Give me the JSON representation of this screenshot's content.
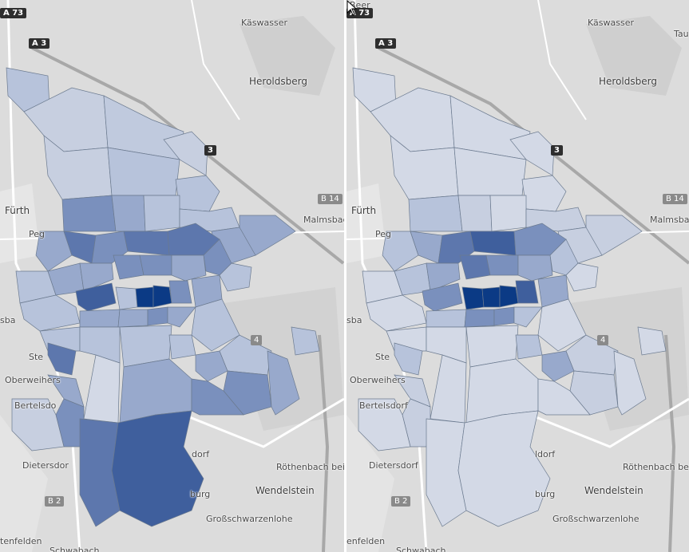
{
  "colors": {
    "base_map": "#dcdcdc",
    "choropleth_scale": [
      "#d3d9e6",
      "#b7c3db",
      "#98a9cc",
      "#7a90bd",
      "#5d77ad",
      "#3f5f9d",
      "#0b3a85"
    ]
  },
  "panels": [
    {
      "id": "left",
      "labels": {
        "kaeswasser": "Käswasser",
        "heroldsberg": "Heroldsberg",
        "fuerth": "Fürth",
        "peg": "Peg",
        "malmsbach": "Malmsbach",
        "sba": "sba",
        "ste": "Ste",
        "oberweihers": "Oberweihers",
        "bertelsdorf": "Bertelsdo",
        "dietersdorf": "Dietersdor",
        "schwabach": "Schwabach",
        "enfelden": "tenfelden",
        "rothenbach": "Röthenbach bei S",
        "wendelstein": "Wendelstein",
        "grossschwarzenlohe": "Großschwarzenlohe",
        "dorf": "dorf",
        "burg": "burg"
      },
      "road_shields": {
        "a73": "A 73",
        "a3": "A 3",
        "b14": "B 14",
        "b2": "B 2",
        "n3": "3",
        "n4": "4"
      }
    },
    {
      "id": "right",
      "labels": {
        "beer": "Beer",
        "tau": "Tau",
        "kaeswasser": "Käswasser",
        "heroldsberg": "Heroldsberg",
        "fuerth": "Fürth",
        "peg": "Peg",
        "malmsbach": "Malmsbac",
        "sba": "sba",
        "ste": "Ste",
        "oberweihers": "Oberweihers",
        "bertelsdorf": "Bertelsdorf",
        "dietersdorf": "Dietersdorf",
        "schwabach": "Schwabach",
        "enfelden": "enfelden",
        "rothenbach": "Röthenbach bei",
        "wendelstein": "Wendelstein",
        "grossschwarzenlohe": "Großschwarzenlohe",
        "dorf": "ldorf",
        "burg": "burg"
      },
      "road_shields": {
        "a73": "A 73",
        "a3": "A 3",
        "b14": "B 14",
        "b2": "B 2",
        "n3": "3",
        "n4": "4"
      }
    }
  ]
}
